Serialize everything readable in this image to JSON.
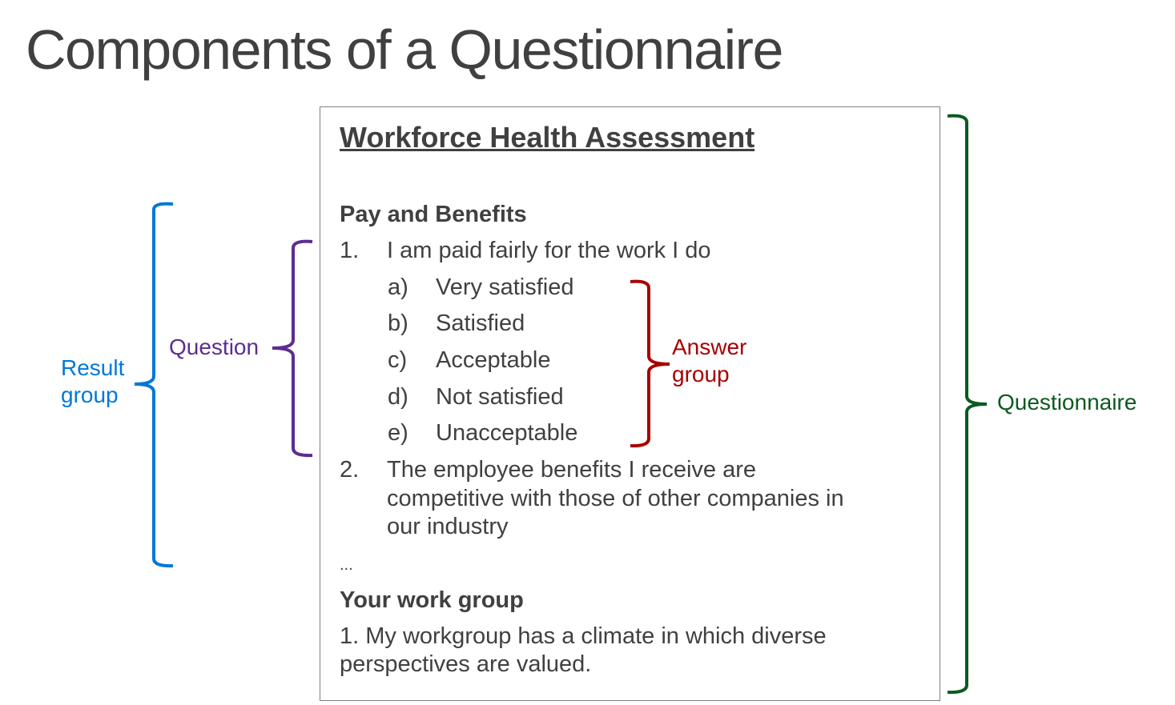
{
  "slide_title": "Components of a Questionnaire",
  "questionnaire": {
    "title": "Workforce Health Assessment",
    "sections": [
      {
        "heading": "Pay and Benefits",
        "questions": [
          {
            "number": "1.",
            "text": "I am paid fairly for the work I do",
            "answers": [
              {
                "letter": "a)",
                "text": "Very satisfied"
              },
              {
                "letter": "b)",
                "text": "Satisfied"
              },
              {
                "letter": "c)",
                "text": "Acceptable"
              },
              {
                "letter": "d)",
                "text": "Not satisfied"
              },
              {
                "letter": "e)",
                "text": "Unacceptable"
              }
            ]
          },
          {
            "number": "2.",
            "text_lines": [
              "The employee benefits I receive are",
              "competitive with those of other companies in",
              "our industry"
            ]
          }
        ],
        "ellipsis": "..."
      },
      {
        "heading": "Your work group",
        "question_lines": [
          "1. My workgroup has a climate in which diverse",
          "perspectives are valued."
        ]
      }
    ]
  },
  "annotations": {
    "result_group": {
      "lines": [
        "Result",
        "group"
      ],
      "color": "#0078D7"
    },
    "question": {
      "text": "Question",
      "color": "#5C2D91"
    },
    "answer_group": {
      "lines": [
        "Answer",
        "group"
      ],
      "color": "#A80000"
    },
    "questionnaire": {
      "text": "Questionnaire",
      "color": "#0B5A1E"
    }
  }
}
